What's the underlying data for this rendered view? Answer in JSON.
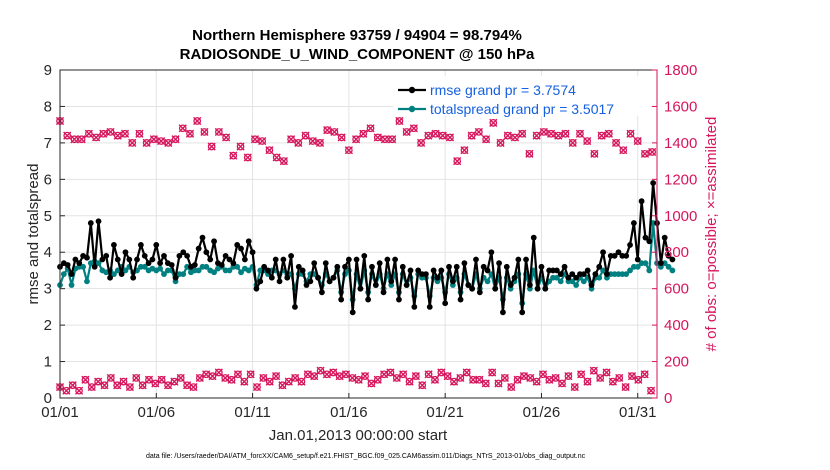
{
  "chart_data": {
    "type": "line",
    "title_line1": "Northern Hemisphere 93759 / 94904 = 98.794%",
    "title_line2": "RADIOSONDE_U_WIND_COMPONENT @ 150 hPa",
    "xlabel": "Jan.01,2013 00:00:00 start",
    "ylabel_left": "rmse and totalspread",
    "ylabel_right": "# of obs: o=possible; ×=assimilated",
    "footnote": "data file: /Users/raeder/DAI/ATM_forcXX/CAM6_setup/f.e21.FHIST_BGC.f09_025.CAM6assim.011/Diags_NTrS_2013-01/obs_diag_output.nc",
    "xlim": [
      1,
      32
    ],
    "ylim_left": [
      0,
      9
    ],
    "ylim_right": [
      0,
      1800
    ],
    "x_ticks": [
      1,
      6,
      11,
      16,
      21,
      26,
      31
    ],
    "x_tick_labels": [
      "01/01",
      "01/06",
      "01/11",
      "01/16",
      "01/21",
      "01/26",
      "01/31"
    ],
    "y_left_ticks": [
      0,
      1,
      2,
      3,
      4,
      5,
      6,
      7,
      8,
      9
    ],
    "y_right_ticks": [
      0,
      200,
      400,
      600,
      800,
      1000,
      1200,
      1400,
      1600,
      1800
    ],
    "grid": true,
    "colors": {
      "rmse": "#000000",
      "totalspread": "#008080",
      "obs": "#d6175d",
      "legend_text": "#1560e0"
    },
    "series": [
      {
        "name": "rmse",
        "label": "rmse grand pr = 3.7574",
        "axis": "left",
        "values": [
          3.6,
          3.7,
          3.65,
          3.4,
          3.8,
          3.7,
          3.9,
          3.85,
          4.8,
          3.6,
          4.85,
          3.8,
          3.9,
          3.3,
          4.2,
          3.8,
          3.4,
          4.0,
          3.8,
          3.3,
          3.8,
          4.2,
          3.9,
          3.7,
          3.8,
          4.2,
          3.7,
          3.9,
          3.7,
          3.65,
          3.3,
          3.9,
          4.0,
          3.9,
          3.6,
          3.65,
          4.1,
          4.4,
          4.0,
          3.8,
          4.3,
          3.7,
          3.65,
          3.9,
          3.8,
          3.7,
          4.2,
          4.1,
          3.8,
          4.3,
          4.0,
          3.0,
          3.2,
          3.6,
          3.5,
          3.3,
          3.8,
          3.2,
          3.8,
          3.3,
          3.9,
          2.5,
          3.6,
          3.5,
          3.1,
          3.2,
          3.7,
          3.3,
          2.9,
          3.7,
          3.2,
          3.3,
          3.6,
          2.7,
          3.6,
          3.8,
          2.35,
          3.8,
          3.0,
          3.9,
          2.7,
          3.6,
          3.1,
          3.7,
          2.9,
          3.8,
          3.2,
          3.8,
          2.7,
          3.6,
          3.1,
          3.5,
          2.5,
          3.5,
          3.4,
          3.4,
          2.5,
          3.5,
          3.3,
          3.5,
          2.6,
          3.6,
          3.2,
          3.6,
          2.7,
          3.7,
          3.1,
          3.0,
          3.8,
          2.9,
          3.6,
          3.5,
          4.0,
          3.0,
          3.7,
          2.35,
          3.6,
          3.1,
          3.3,
          3.8,
          2.35,
          3.8,
          3.1,
          4.4,
          3.0,
          3.6,
          3.0,
          3.5,
          3.5,
          3.5,
          3.4,
          3.6,
          3.3,
          3.4,
          3.3,
          3.4,
          3.4,
          3.5,
          3.1,
          3.4,
          3.6,
          4.0,
          3.4,
          3.9,
          3.9,
          4.0,
          3.9,
          3.9,
          4.2,
          4.8,
          3.8,
          5.4,
          4.4,
          4.3,
          5.9,
          4.8,
          3.7,
          4.4,
          3.9,
          3.8
        ],
        "start": 1,
        "step": 0.2
      },
      {
        "name": "totalspread",
        "label": "totalspread grand pr = 3.5017",
        "axis": "left",
        "values": [
          3.1,
          3.4,
          3.55,
          3.1,
          3.55,
          3.6,
          3.6,
          3.2,
          3.7,
          3.75,
          3.7,
          3.5,
          3.45,
          3.5,
          3.4,
          3.5,
          3.6,
          3.5,
          3.6,
          3.45,
          3.5,
          3.6,
          3.6,
          3.5,
          3.55,
          3.5,
          3.55,
          3.4,
          3.5,
          3.5,
          3.2,
          3.4,
          3.4,
          3.6,
          3.45,
          3.5,
          3.5,
          3.6,
          3.6,
          3.5,
          3.45,
          3.55,
          3.6,
          3.5,
          3.5,
          3.6,
          3.6,
          3.45,
          3.55,
          3.5,
          3.6,
          3.1,
          3.5,
          3.5,
          3.4,
          3.5,
          3.5,
          3.4,
          3.5,
          3.4,
          3.4,
          3.0,
          3.4,
          3.4,
          3.2,
          3.4,
          3.4,
          3.3,
          3.1,
          3.4,
          3.2,
          3.3,
          3.5,
          2.9,
          3.4,
          3.5,
          2.7,
          3.4,
          3.0,
          3.5,
          2.9,
          3.4,
          3.1,
          3.4,
          3.0,
          3.4,
          3.1,
          3.4,
          2.9,
          3.4,
          3.1,
          3.3,
          2.8,
          3.4,
          3.3,
          3.3,
          2.8,
          3.3,
          3.2,
          3.3,
          2.9,
          3.4,
          3.1,
          3.3,
          2.9,
          3.4,
          3.1,
          3.0,
          3.4,
          3.0,
          3.3,
          3.2,
          3.4,
          3.0,
          3.3,
          2.7,
          3.3,
          3.0,
          3.2,
          3.4,
          2.6,
          3.4,
          3.0,
          3.5,
          3.0,
          3.3,
          3.0,
          3.2,
          3.3,
          3.3,
          3.2,
          3.4,
          3.2,
          3.2,
          3.1,
          3.3,
          3.2,
          3.3,
          3.0,
          3.3,
          3.3,
          3.5,
          3.3,
          3.4,
          3.4,
          3.4,
          3.4,
          3.4,
          3.5,
          3.6,
          3.6,
          3.7,
          3.7,
          3.5,
          4.8,
          3.7,
          3.6,
          3.7,
          3.6,
          3.5
        ],
        "start": 1,
        "step": 0.2
      },
      {
        "name": "obs_possible_upper",
        "axis": "right",
        "values": [
          1520,
          1440,
          1420,
          1420,
          1450,
          1430,
          1450,
          1460,
          1440,
          1450,
          1400,
          1450,
          1400,
          1420,
          1410,
          1400,
          1420,
          1480,
          1450,
          1520,
          1460,
          1380,
          1460,
          1430,
          1330,
          1380,
          1320,
          1420,
          1410,
          1360,
          1320,
          1300,
          1420,
          1400,
          1440,
          1410,
          1400,
          1470,
          1460,
          1430,
          1360,
          1420,
          1450,
          1480,
          1430,
          1420,
          1420,
          1520,
          1460,
          1480,
          1400,
          1440,
          1450,
          1440,
          1430,
          1300,
          1360,
          1440,
          1460,
          1420,
          1510,
          1400,
          1440,
          1430,
          1450,
          1340,
          1440,
          1460,
          1450,
          1440,
          1450,
          1400,
          1450,
          1410,
          1340,
          1440,
          1450,
          1400,
          1360,
          1450,
          1410,
          1340,
          1350,
          1330,
          1330
        ],
        "start": 1,
        "step": 0.375
      },
      {
        "name": "obs_possible_lower",
        "axis": "right",
        "values": [
          60,
          40,
          70,
          40,
          100,
          60,
          90,
          70,
          110,
          70,
          90,
          60,
          110,
          70,
          100,
          80,
          100,
          70,
          90,
          110,
          70,
          60,
          110,
          130,
          120,
          140,
          110,
          100,
          130,
          90,
          130,
          60,
          110,
          90,
          120,
          70,
          90,
          110,
          90,
          130,
          120,
          150,
          130,
          140,
          120,
          130,
          110,
          100,
          120,
          80,
          100,
          130,
          140,
          110,
          130,
          90,
          120,
          70,
          130,
          100,
          140,
          120,
          90,
          110,
          140,
          100,
          100,
          80,
          140,
          80,
          110,
          60,
          100,
          120,
          110,
          90,
          130,
          100,
          110,
          80,
          120,
          60,
          130,
          90,
          150,
          110,
          140,
          90,
          110,
          60,
          120,
          100,
          130,
          40
        ],
        "start": 1,
        "step": 0.33
      }
    ]
  }
}
